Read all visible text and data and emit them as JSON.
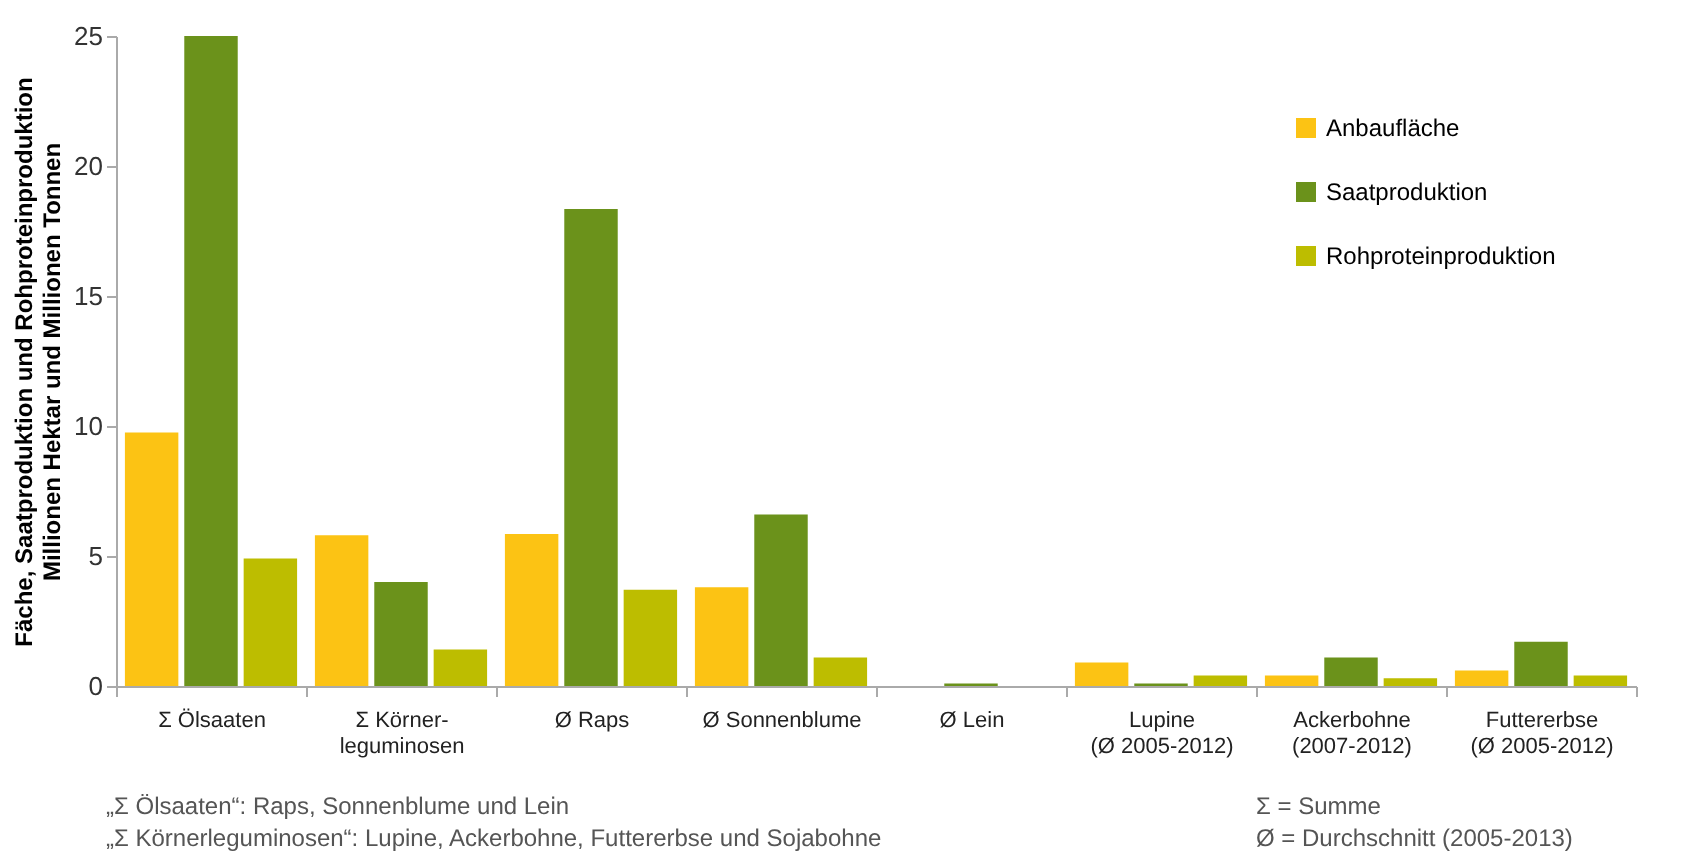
{
  "chart_data": {
    "type": "bar",
    "ylabel": "Fäche, Saatproduktion und Rohproteinproduktion\nMillionen Hektar und Millionen Tonnen",
    "categories": [
      "Σ Ölsaaten",
      "Σ Körner-\nleguminosen",
      "Ø Raps",
      "Ø Sonnenblume",
      "Ø Lein",
      "Lupine\n(Ø 2005-2012)",
      "Ackerbohne\n(2007-2012)",
      "Futtererbse\n(Ø 2005-2012)"
    ],
    "series": [
      {
        "name": "Anbaufläche",
        "color": "#fcc314",
        "values": [
          9.75,
          5.8,
          5.85,
          3.8,
          0,
          0.9,
          0.4,
          0.6
        ]
      },
      {
        "name": "Saatproduktion",
        "color": "#6b921b",
        "values": [
          25,
          4.0,
          18.35,
          6.6,
          0.1,
          0.1,
          1.1,
          1.7
        ]
      },
      {
        "name": "Rohproteinproduktion",
        "color": "#bdbd00",
        "values": [
          4.9,
          1.4,
          3.7,
          1.1,
          0,
          0.4,
          0.3,
          0.4
        ]
      }
    ],
    "ylim": [
      0,
      25
    ],
    "yticks": [
      0,
      5,
      10,
      15,
      20,
      25
    ],
    "grid": false,
    "legend": "top right",
    "annotations": [
      "„Σ Ölsaaten“: Raps, Sonnenblume und Lein",
      "„Σ Körnerleguminosen“: Lupine, Ackerbohne, Futtererbse und Sojabohne",
      "Σ = Summe",
      "Ø = Durchschnitt (2005-2013)"
    ]
  }
}
